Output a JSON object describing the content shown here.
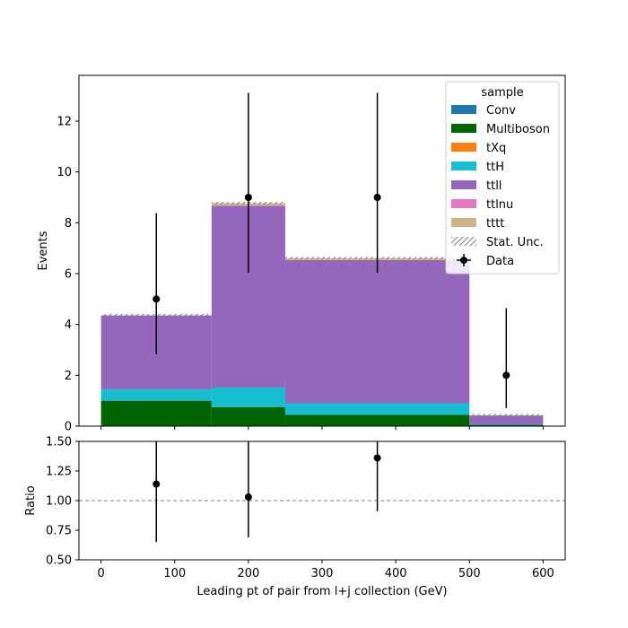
{
  "chart_data": [
    {
      "type": "bar",
      "stacked": true,
      "histogram": true,
      "bin_edges": [
        0,
        150,
        250,
        500,
        600
      ],
      "xlim": [
        -30,
        630
      ],
      "ylim": [
        0,
        13.8
      ],
      "ylabel": "Events",
      "xticks": [
        0,
        100,
        200,
        300,
        400,
        500,
        600
      ],
      "xticklabels": [
        "0",
        "100",
        "200",
        "300",
        "400",
        "500",
        "600"
      ],
      "yticks": [
        0,
        2,
        4,
        6,
        8,
        10,
        12
      ],
      "yticklabels": [
        "0",
        "2",
        "4",
        "6",
        "8",
        "10",
        "12"
      ],
      "legend": {
        "title": "sample",
        "position": "top-right"
      },
      "series": [
        {
          "name": "Conv",
          "color": "#1f77b4",
          "values": [
            0.0,
            0.0,
            0.0,
            0.0
          ]
        },
        {
          "name": "Multiboson",
          "color": "#006400",
          "values": [
            1.0,
            0.75,
            0.45,
            0.05
          ]
        },
        {
          "name": "tXq",
          "color": "#ff7f0e",
          "values": [
            0.0,
            0.0,
            0.0,
            0.0
          ]
        },
        {
          "name": "ttH",
          "color": "#17becf",
          "values": [
            0.45,
            0.77,
            0.45,
            0.02
          ]
        },
        {
          "name": "ttll",
          "color": "#9467bd",
          "values": [
            2.9,
            7.15,
            5.63,
            0.35
          ]
        },
        {
          "name": "ttlnu",
          "color": "#e377c2",
          "values": [
            0.0,
            0.0,
            0.0,
            0.0
          ]
        },
        {
          "name": "tttt",
          "color": "#d2b48c",
          "values": [
            0.02,
            0.1,
            0.08,
            0.01
          ]
        }
      ],
      "stat_unc_label": "Stat. Unc.",
      "data": {
        "name": "Data",
        "x": [
          75,
          200,
          375,
          550
        ],
        "y": [
          5,
          9,
          9,
          2
        ],
        "yerr_low": [
          2.17,
          2.96,
          2.96,
          1.29
        ],
        "yerr_high": [
          3.38,
          4.11,
          4.11,
          2.64
        ]
      }
    },
    {
      "type": "scatter",
      "xlabel": "Leading pt of pair from l+j collection (GeV)",
      "ylabel": "Ratio",
      "xlim": [
        -30,
        630
      ],
      "ylim": [
        0.5,
        1.5
      ],
      "xticks": [
        0,
        100,
        200,
        300,
        400,
        500,
        600
      ],
      "xticklabels": [
        "0",
        "100",
        "200",
        "300",
        "400",
        "500",
        "600"
      ],
      "yticks": [
        0.5,
        0.75,
        1.0,
        1.25,
        1.5
      ],
      "yticklabels": [
        "0.50",
        "0.75",
        "1.00",
        "1.25",
        "1.50"
      ],
      "reference_line": 1.0,
      "x": [
        75,
        200,
        375
      ],
      "y": [
        1.14,
        1.03,
        1.36
      ],
      "yerr_low": [
        0.49,
        0.34,
        0.45
      ],
      "yerr_high": [
        0.77,
        0.47,
        0.62
      ]
    }
  ]
}
